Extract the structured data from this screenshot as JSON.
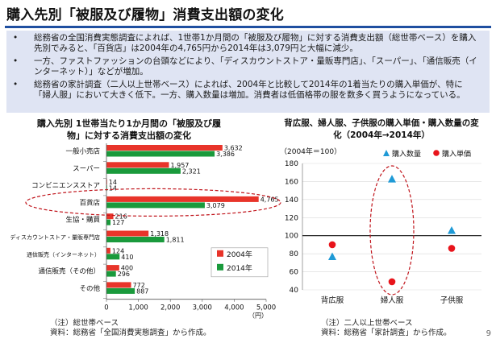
{
  "title": "購入先別「被服及び履物」消費支出額の変化",
  "bullets": [
    "総務省の全国消費実態調査によれば、1世帯1か月間の「被服及び履物」に対する消費支出額（総世帯ベース）を購入先別でみると、「百貨店」は2004年の4,765円から2014年は3,079円と大幅に減少。",
    "一方、ファストファッションの台頭などにより、「ディスカウントストア・量販専門店」、「スーパー」、「通信販売（インターネット）」などが増加。",
    "総務省の家計調査（二人以上世帯ベース）によれば、2004年と比較して2014年の1着当たりの購入単価が、特に「婦人服」において大きく低下。一方、購入数量は増加。消費者は低価格帯の服を数多く買うようになっている。"
  ],
  "chart_data": [
    {
      "type": "bar",
      "orientation": "horizontal",
      "title": "購入先別 1世帯当たり1か月間の「被服及び履物」に対する消費支出額の変化",
      "categories": [
        "一般小売店",
        "スーパー",
        "コンビニエンスストア",
        "百貨店",
        "生協・購買",
        "ディスカウントストア・量販専門店",
        "通信販売（インターネット）",
        "通信販売（その他）",
        "その他"
      ],
      "series": [
        {
          "name": "2004年",
          "color": "#e8342a",
          "values": [
            3632,
            1957,
            14,
            4765,
            216,
            1318,
            124,
            400,
            772
          ]
        },
        {
          "name": "2014年",
          "color": "#1a9a3c",
          "values": [
            3386,
            2321,
            14,
            3079,
            127,
            1811,
            410,
            296,
            887
          ]
        }
      ],
      "value_labels": [
        [
          "3,632",
          "3,386"
        ],
        [
          "1,957",
          "2,321"
        ],
        [
          "14",
          "14"
        ],
        [
          "4,765",
          "3,079"
        ],
        [
          "216",
          "127"
        ],
        [
          "1,318",
          "1,811"
        ],
        [
          "124",
          "410"
        ],
        [
          "400",
          "296"
        ],
        [
          "772",
          "887"
        ]
      ],
      "xlim": [
        0,
        5000
      ],
      "xticks": [
        0,
        1000,
        2000,
        3000,
        4000,
        5000
      ],
      "xtick_labels": [
        "0",
        "1,000",
        "2,000",
        "3,000",
        "4,000",
        "5,000"
      ],
      "xunit": "（円）",
      "legend": "bottom-right",
      "highlight": "百貨店"
    },
    {
      "type": "scatter",
      "title": "背広服、婦人服、子供服の購入単価・購入数量の変化（2004年→2014年）",
      "subtitle": "（2004年＝100）",
      "categories": [
        "背広服",
        "婦人服",
        "子供服"
      ],
      "series": [
        {
          "name": "購入数量",
          "marker": "triangle",
          "color": "#1f9ad6",
          "values": [
            77,
            163,
            106
          ]
        },
        {
          "name": "購入単価",
          "marker": "circle",
          "color": "#e8141b",
          "values": [
            90,
            49,
            86
          ]
        }
      ],
      "ylim": [
        40,
        180
      ],
      "yticks": [
        40,
        60,
        80,
        100,
        120,
        140,
        160,
        180
      ],
      "reference_line": 100,
      "legend": "top-right",
      "highlight": "婦人服"
    }
  ],
  "notes": {
    "left": [
      "（注）総世帯ベース",
      "資料：総務省「全国消費実態調査」から作成。"
    ],
    "right": [
      "（注）二人以上世帯ベース",
      "資料：総務省「家計調査」から作成。"
    ]
  },
  "page_number": "9"
}
